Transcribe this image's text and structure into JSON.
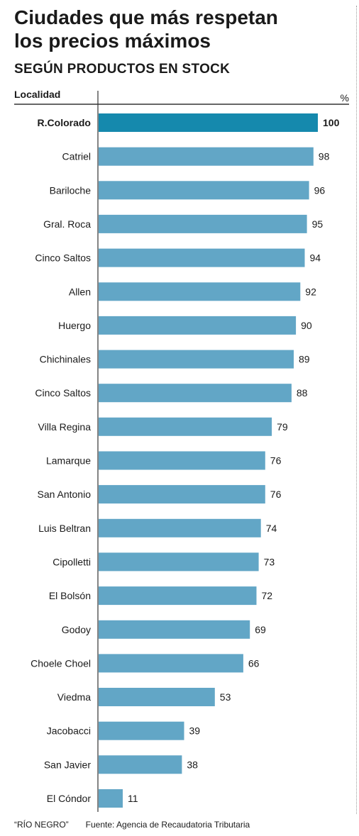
{
  "chart_data": {
    "type": "bar",
    "orientation": "horizontal",
    "title": "Ciudades que más respetan\nlos precios máximos",
    "subtitle": "SEGÚN PRODUCTOS EN STOCK",
    "category_header": "Localidad",
    "unit_label": "%",
    "categories": [
      "R.Colorado",
      "Catriel",
      "Bariloche",
      "Gral. Roca",
      "Cinco Saltos",
      "Allen",
      "Huergo",
      "Chichinales",
      "Cinco Saltos",
      "Villa Regina",
      "Lamarque",
      "San Antonio",
      "Luis Beltran",
      "Cipolletti",
      "El Bolsón",
      "Godoy",
      "Choele Choel",
      "Viedma",
      "Jacobacci",
      "San Javier",
      "El Cóndor"
    ],
    "values": [
      100,
      98,
      96,
      95,
      94,
      92,
      90,
      89,
      88,
      79,
      76,
      76,
      74,
      73,
      72,
      69,
      66,
      53,
      39,
      38,
      11
    ],
    "highlight_index": 0,
    "xlim": [
      0,
      100
    ],
    "grid": false,
    "colors": {
      "bar": "#62a6c6",
      "highlight": "#1589ad",
      "text": "#1a1a1a",
      "rule": "#333333"
    }
  },
  "footer": {
    "credit": "“RÍO NEGRO”",
    "source": "Fuente: Agencia de Recaudatoria Tributaria"
  }
}
